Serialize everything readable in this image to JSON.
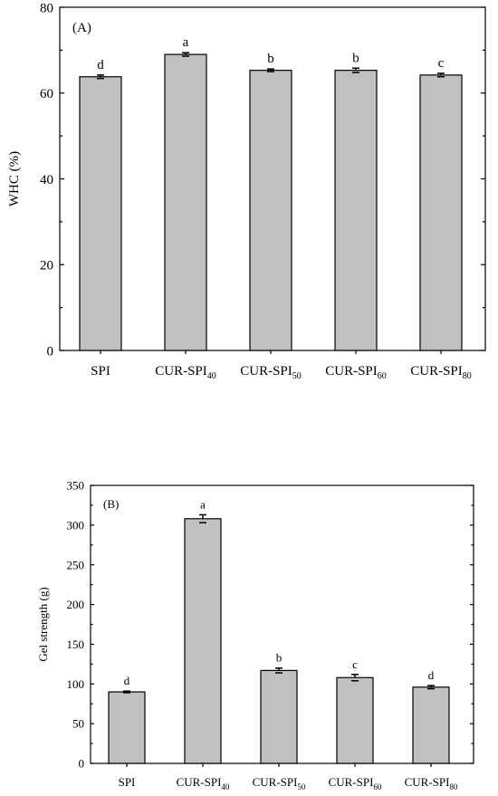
{
  "chart_data": [
    {
      "type": "bar",
      "panel_label": "(A)",
      "ylabel": "WHC (%)",
      "ylim": [
        0,
        80
      ],
      "yticks": [
        0,
        20,
        40,
        60,
        80
      ],
      "categories": [
        {
          "base": "SPI",
          "sub": ""
        },
        {
          "base": "CUR-SPI",
          "sub": "40"
        },
        {
          "base": "CUR-SPI",
          "sub": "50"
        },
        {
          "base": "CUR-SPI",
          "sub": "60"
        },
        {
          "base": "CUR-SPI",
          "sub": "80"
        }
      ],
      "values": [
        63.8,
        69.0,
        65.3,
        65.3,
        64.2
      ],
      "errors": [
        0.4,
        0.4,
        0.3,
        0.5,
        0.4
      ],
      "significance": [
        "d",
        "a",
        "b",
        "b",
        "c"
      ],
      "grid": false
    },
    {
      "type": "bar",
      "panel_label": "(B)",
      "ylabel": "Gel strength (g)",
      "ylim": [
        0,
        350
      ],
      "yticks": [
        0,
        50,
        100,
        150,
        200,
        250,
        300,
        350
      ],
      "categories": [
        {
          "base": "SPI",
          "sub": ""
        },
        {
          "base": "CUR-SPI",
          "sub": "40"
        },
        {
          "base": "CUR-SPI",
          "sub": "50"
        },
        {
          "base": "CUR-SPI",
          "sub": "60"
        },
        {
          "base": "CUR-SPI",
          "sub": "80"
        }
      ],
      "values": [
        90,
        308,
        117,
        108,
        96
      ],
      "errors": [
        1,
        5,
        3,
        4,
        2
      ],
      "significance": [
        "d",
        "a",
        "b",
        "c",
        "d"
      ],
      "grid": false
    }
  ]
}
